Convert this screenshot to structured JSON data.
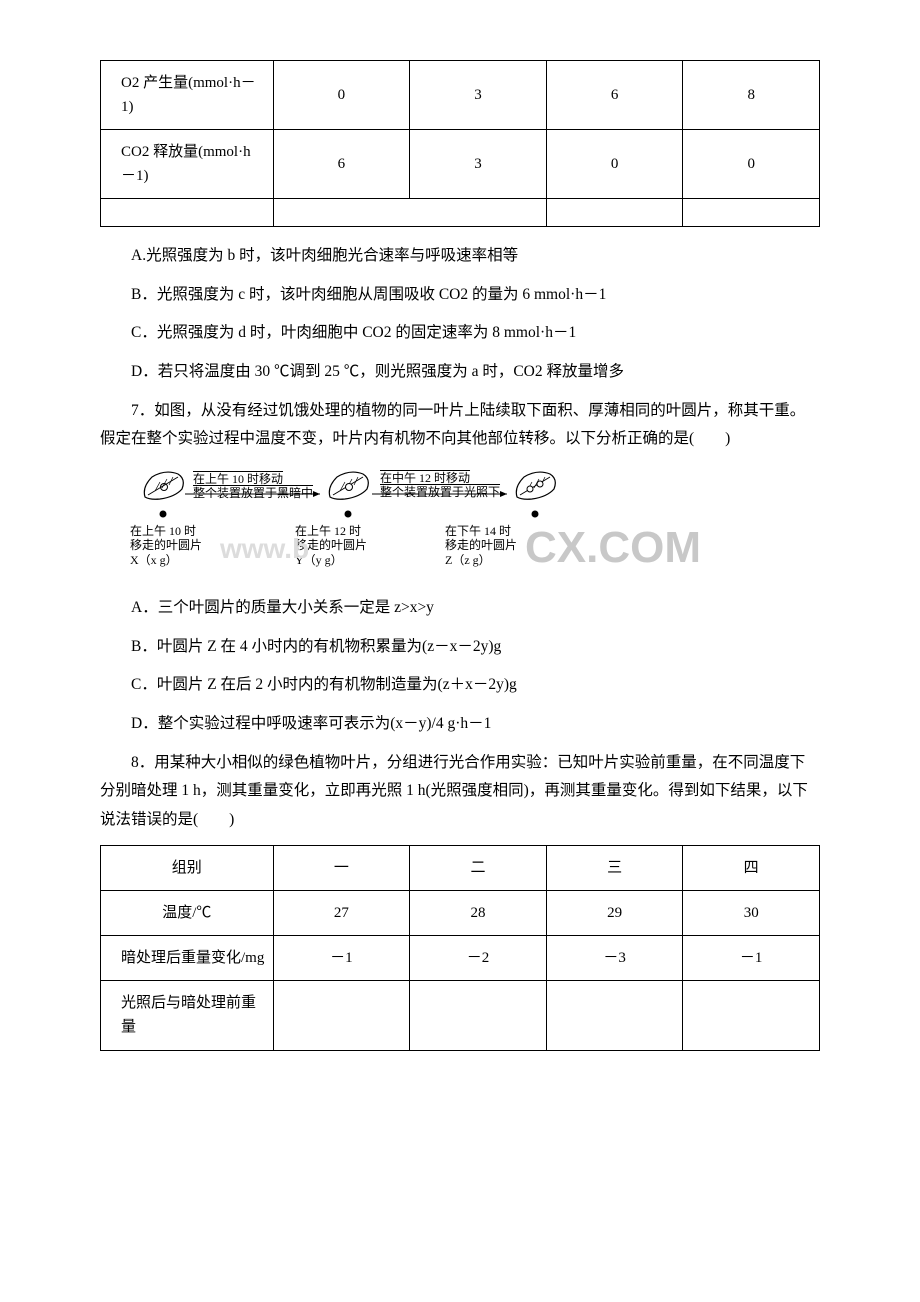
{
  "table1": {
    "rows": [
      {
        "header": "O2 产生量(mmol·h－1)",
        "cells": [
          "0",
          "3",
          "6",
          "8"
        ]
      },
      {
        "header": "CO2 释放量(mmol·h－1)",
        "cells": [
          "6",
          "3",
          "0",
          "0"
        ]
      },
      {
        "header": "",
        "cells": [
          "",
          "",
          "",
          ""
        ]
      }
    ],
    "col_widths": [
      "24%",
      "19%",
      "19%",
      "19%",
      "19%"
    ]
  },
  "q6_options": {
    "A": "A.光照强度为 b 时，该叶肉细胞光合速率与呼吸速率相等",
    "B": "B．光照强度为 c 时，该叶肉细胞从周围吸收 CO2 的量为 6 mmol·h－1",
    "C": "C．光照强度为 d 时，叶肉细胞中 CO2 的固定速率为 8 mmol·h－1",
    "D": "D．若只将温度由 30 ℃调到 25 ℃，则光照强度为 a 时，CO2 释放量增多"
  },
  "q7": {
    "stem": "7．如图，从没有经过饥饿处理的植物的同一叶片上陆续取下面积、厚薄相同的叶圆片，称其干重。假定在整个实验过程中温度不变，叶片内有机物不向其他部位转移。以下分析正确的是(　　)",
    "diagram": {
      "top_labels": [
        "在上午 10 时移动\n整个装置放置于黑暗中",
        "在中午 12 时移动\n整个装置放置于光照下"
      ],
      "bottom_labels": [
        {
          "line1": "在上午 10 时",
          "line2": "移走的叶圆片",
          "line3": "X（x g）"
        },
        {
          "line1": "在上午 12 时",
          "line2": "移走的叶圆片",
          "line3": "Y（y g）"
        },
        {
          "line1": "在下午 14 时",
          "line2": "移走的叶圆片",
          "line3": "Z（z g）"
        }
      ]
    },
    "options": {
      "A": "A．三个叶圆片的质量大小关系一定是 z>x>y",
      "B": "B．叶圆片 Z 在 4 小时内的有机物积累量为(z－x－2y)g",
      "C": "C．叶圆片 Z 在后 2 小时内的有机物制造量为(z＋x－2y)g",
      "D": "D．整个实验过程中呼吸速率可表示为(x－y)/4 g·h－1"
    }
  },
  "q8": {
    "stem": "8．用某种大小相似的绿色植物叶片，分组进行光合作用实验：已知叶片实验前重量，在不同温度下分别暗处理 1 h，测其重量变化，立即再光照 1 h(光照强度相同)，再测其重量变化。得到如下结果，以下说法错误的是(　　)"
  },
  "table2": {
    "rows": [
      {
        "header": "组别",
        "cells": [
          "一",
          "二",
          "三",
          "四"
        ]
      },
      {
        "header": "温度/℃",
        "cells": [
          "27",
          "28",
          "29",
          "30"
        ]
      },
      {
        "header": "暗处理后重量变化/mg",
        "cells": [
          "－1",
          "－2",
          "－3",
          "－1"
        ]
      },
      {
        "header": "光照后与暗处理前重量",
        "cells": [
          "",
          "",
          "",
          ""
        ]
      }
    ],
    "col_widths": [
      "24%",
      "19%",
      "19%",
      "19%",
      "19%"
    ]
  },
  "watermark": {
    "part1": "www.b",
    "part2": "CX.COM"
  }
}
